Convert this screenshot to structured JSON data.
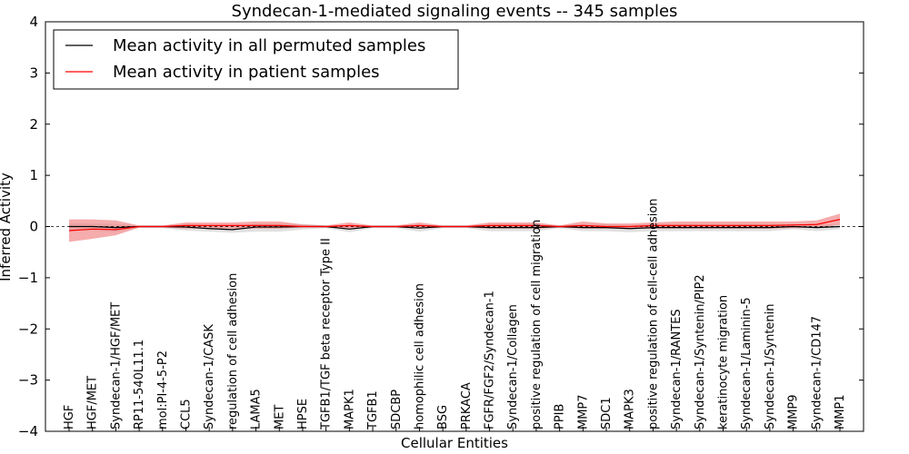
{
  "chart_data": {
    "type": "line",
    "title": "Syndecan-1-mediated signaling events -- 345 samples",
    "xlabel": "Cellular Entities",
    "ylabel": "Inferred Activity",
    "ylim": [
      -4,
      4
    ],
    "yticks": [
      -4,
      -3,
      -2,
      -1,
      0,
      1,
      2,
      3,
      4
    ],
    "ytick_labels": [
      "−4",
      "−3",
      "−2",
      "−1",
      "0",
      "1",
      "2",
      "3",
      "4"
    ],
    "grid": false,
    "legend_position": "top-left",
    "categories": [
      "HGF",
      "HGF/MET",
      "Syndecan-1/HGF/MET",
      "RP11-540L11.1",
      "mol:PI-4-5-P2",
      "CCL5",
      "Syndecan-1/CASK",
      "regulation of cell adhesion",
      "LAMA5",
      "MET",
      "HPSE",
      "TGFB1/TGF beta receptor Type II",
      "MAPK1",
      "TGFB1",
      "SDCBP",
      "homophilic cell adhesion",
      "BSG",
      "PRKACA",
      "FGFR/FGF2/Syndecan-1",
      "Syndecan-1/Collagen",
      "positive regulation of cell migration",
      "PPIB",
      "MMP7",
      "SDC1",
      "MAPK3",
      "positive regulation of cell-cell adhesion",
      "Syndecan-1/RANTES",
      "Syndecan-1/Syntenin/PIP2",
      "keratinocyte migration",
      "Syndecan-1/Laminin-5",
      "Syndecan-1/Syntenin",
      "MMP9",
      "Syndecan-1/CD147",
      "MMP1"
    ],
    "series": [
      {
        "name": "Mean activity in all permuted samples",
        "color": "#000000",
        "values": [
          0.0,
          0.0,
          -0.02,
          0.0,
          0.0,
          -0.01,
          -0.04,
          -0.06,
          -0.01,
          -0.01,
          0.0,
          0.0,
          -0.05,
          0.0,
          0.0,
          -0.03,
          0.0,
          0.0,
          -0.02,
          -0.02,
          -0.02,
          0.0,
          -0.02,
          -0.02,
          -0.04,
          -0.02,
          -0.02,
          -0.02,
          -0.02,
          -0.02,
          -0.02,
          0.0,
          -0.02,
          0.0
        ],
        "band_low": [
          -0.08,
          -0.08,
          -0.1,
          -0.03,
          -0.03,
          -0.08,
          -0.1,
          -0.12,
          -0.1,
          -0.1,
          -0.06,
          -0.03,
          -0.11,
          -0.03,
          -0.03,
          -0.1,
          -0.03,
          -0.03,
          -0.09,
          -0.09,
          -0.09,
          -0.03,
          -0.09,
          -0.09,
          -0.11,
          -0.09,
          -0.09,
          -0.09,
          -0.09,
          -0.09,
          -0.09,
          -0.05,
          -0.09,
          -0.05
        ],
        "band_high": [
          0.06,
          0.06,
          0.05,
          0.02,
          0.02,
          0.05,
          0.02,
          0.0,
          0.06,
          0.06,
          0.05,
          0.02,
          0.01,
          0.02,
          0.02,
          0.04,
          0.02,
          0.02,
          0.05,
          0.05,
          0.05,
          0.02,
          0.05,
          0.05,
          0.03,
          0.05,
          0.05,
          0.05,
          0.05,
          0.05,
          0.05,
          0.04,
          0.05,
          0.04
        ]
      },
      {
        "name": "Mean activity in patient samples",
        "color": "#ff0000",
        "values": [
          -0.08,
          -0.05,
          -0.06,
          0.0,
          0.0,
          0.02,
          0.02,
          0.02,
          0.02,
          0.02,
          0.0,
          0.0,
          0.02,
          0.0,
          0.0,
          0.02,
          0.0,
          0.0,
          0.02,
          0.02,
          0.02,
          0.0,
          0.02,
          0.0,
          0.0,
          0.02,
          0.02,
          0.02,
          0.02,
          0.02,
          0.02,
          0.03,
          0.04,
          0.14
        ],
        "band_low": [
          -0.3,
          -0.24,
          -0.17,
          -0.02,
          -0.02,
          -0.04,
          -0.04,
          -0.04,
          -0.04,
          -0.04,
          -0.02,
          -0.02,
          -0.04,
          -0.02,
          -0.02,
          -0.04,
          -0.02,
          -0.02,
          -0.04,
          -0.04,
          -0.04,
          -0.02,
          -0.04,
          -0.04,
          -0.04,
          -0.04,
          -0.04,
          -0.04,
          -0.04,
          -0.04,
          -0.04,
          -0.03,
          -0.02,
          0.03
        ],
        "band_high": [
          0.14,
          0.14,
          0.12,
          0.02,
          0.02,
          0.08,
          0.08,
          0.08,
          0.1,
          0.1,
          0.04,
          0.02,
          0.08,
          0.02,
          0.02,
          0.08,
          0.02,
          0.02,
          0.08,
          0.08,
          0.08,
          0.02,
          0.1,
          0.06,
          0.06,
          0.08,
          0.1,
          0.1,
          0.1,
          0.1,
          0.1,
          0.1,
          0.12,
          0.25
        ]
      }
    ],
    "band_colors": {
      "permuted": "#c8c8c8",
      "patient": "#f08080"
    }
  }
}
